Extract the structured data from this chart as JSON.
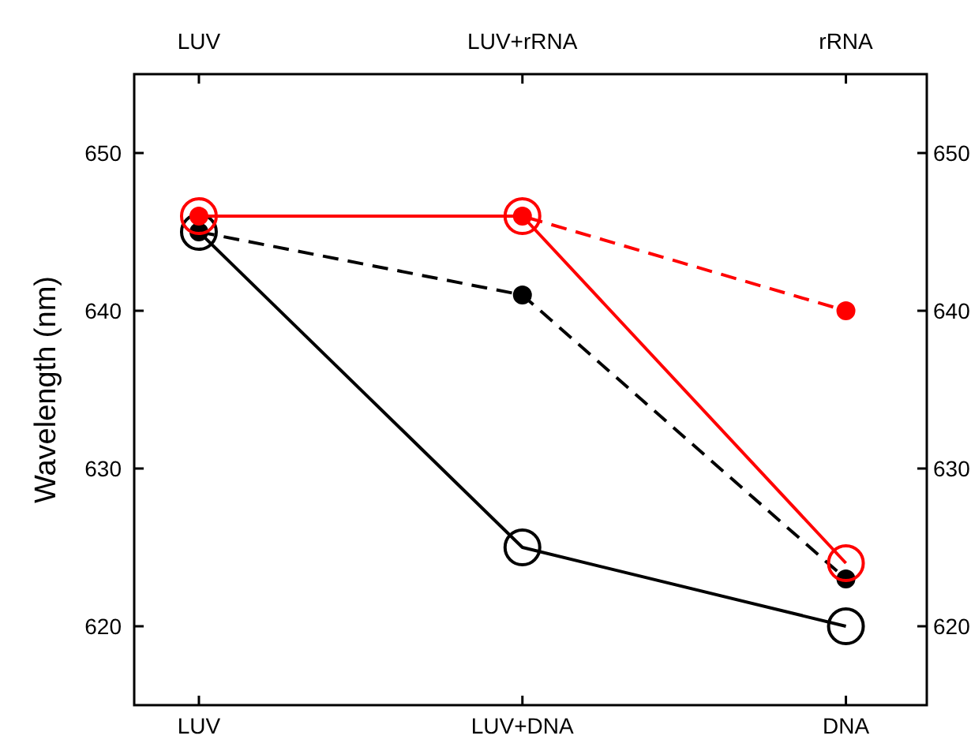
{
  "chart_data": {
    "type": "line",
    "ylabel": "Wavelength (nm)",
    "categories": [
      "LUV",
      "LUV+DNA",
      "DNA"
    ],
    "annotations": [
      "LUV",
      "LUV+rRNA",
      "rRNA"
    ],
    "ylim": [
      615,
      655
    ],
    "yticks": [
      620,
      630,
      640,
      650
    ],
    "y2lim": [
      615,
      655
    ],
    "y2ticks": [
      620,
      630,
      640,
      650
    ],
    "series": [
      {
        "color": "#000000",
        "values": [
          645,
          625,
          620
        ],
        "line_style": "solid",
        "marker": "circle"
      },
      {
        "color": "#000000",
        "values": [
          645,
          641,
          623
        ],
        "line_style": "dashed",
        "marker": "circle"
      },
      {
        "color": "#ff0000",
        "values": [
          646,
          646,
          624
        ],
        "line_style": "solid",
        "marker": "circle"
      },
      {
        "color": "#ff0000",
        "values": [
          646,
          646,
          640
        ],
        "line_style": "dashed",
        "marker": "circle"
      }
    ]
  }
}
